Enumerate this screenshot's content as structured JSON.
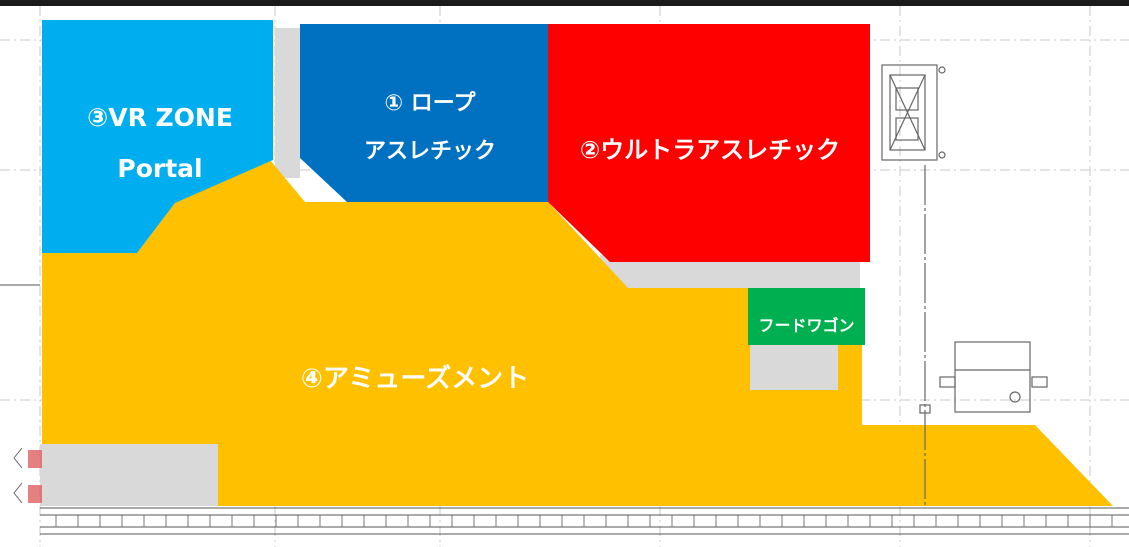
{
  "zones": {
    "vr_zone": {
      "label_line1": "③VR ZONE",
      "label_line2": "Portal",
      "color": "#00aeef"
    },
    "rope": {
      "label_line1": "① ロープ",
      "label_line2": "アスレチック",
      "color": "#0070c0"
    },
    "ultra": {
      "label": "②ウルトラアスレチック",
      "color": "#ff0000"
    },
    "amusement": {
      "label": "④アミューズメント",
      "color": "#ffc000"
    },
    "food_wagon": {
      "label": "フードワゴン",
      "color": "#00b050"
    }
  },
  "colors": {
    "grey_area": "#d9d9d9",
    "drawing_line": "#7f7f7f",
    "top_bar": "#1a1a1a",
    "hatch": "#e06060"
  }
}
